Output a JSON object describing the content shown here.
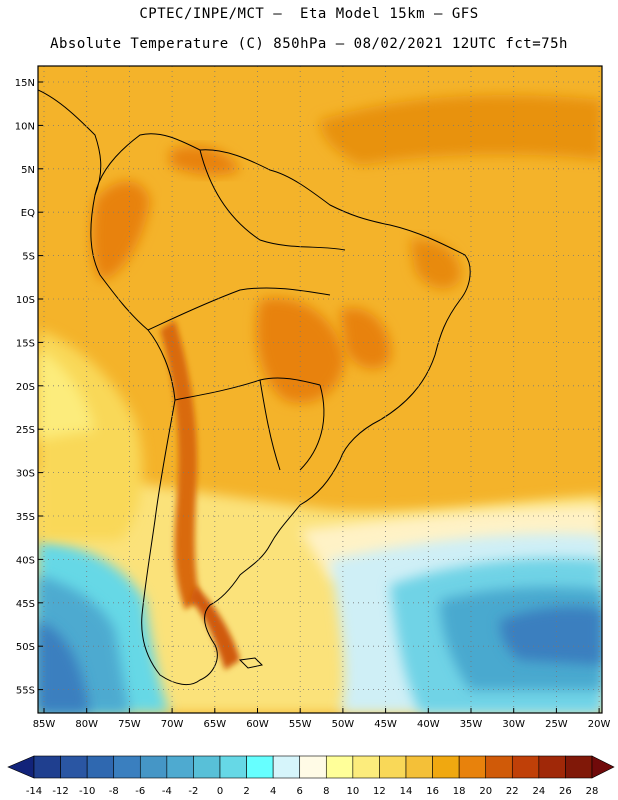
{
  "header": {
    "line1": "CPTEC/INPE/MCT –  Eta Model 15km – GFS",
    "line2": "Absolute Temperature (C) 850hPa – 08/02/2021 12UTC fct=75h"
  },
  "map": {
    "lat_labels": [
      "15N",
      "10N",
      "5N",
      "EQ",
      "5S",
      "10S",
      "15S",
      "20S",
      "25S",
      "30S",
      "35S",
      "40S",
      "45S",
      "50S",
      "55S"
    ],
    "lon_labels": [
      "85W",
      "80W",
      "75W",
      "70W",
      "65W",
      "60W",
      "55W",
      "50W",
      "45W",
      "40W",
      "35W",
      "30W",
      "25W",
      "20W"
    ]
  },
  "colorbar": {
    "ticks": [
      "-14",
      "-12",
      "-10",
      "-8",
      "-6",
      "-4",
      "-2",
      "0",
      "2",
      "4",
      "6",
      "8",
      "10",
      "12",
      "14",
      "16",
      "18",
      "20",
      "22",
      "24",
      "26",
      "28"
    ],
    "colors": [
      "#1f3f8f",
      "#2a56a3",
      "#2f68b0",
      "#3a7fbf",
      "#4596c6",
      "#4eaad0",
      "#58c0d8",
      "#66d8e6",
      "#66ffff",
      "#d6f5fb",
      "#fffbe6",
      "#ffff99",
      "#fcec7c",
      "#f9d858",
      "#f4c038",
      "#f0a810",
      "#e8820c",
      "#d05a08",
      "#c04008",
      "#a02808",
      "#801808"
    ],
    "under_color": "#12237a",
    "over_color": "#700a0a"
  }
}
